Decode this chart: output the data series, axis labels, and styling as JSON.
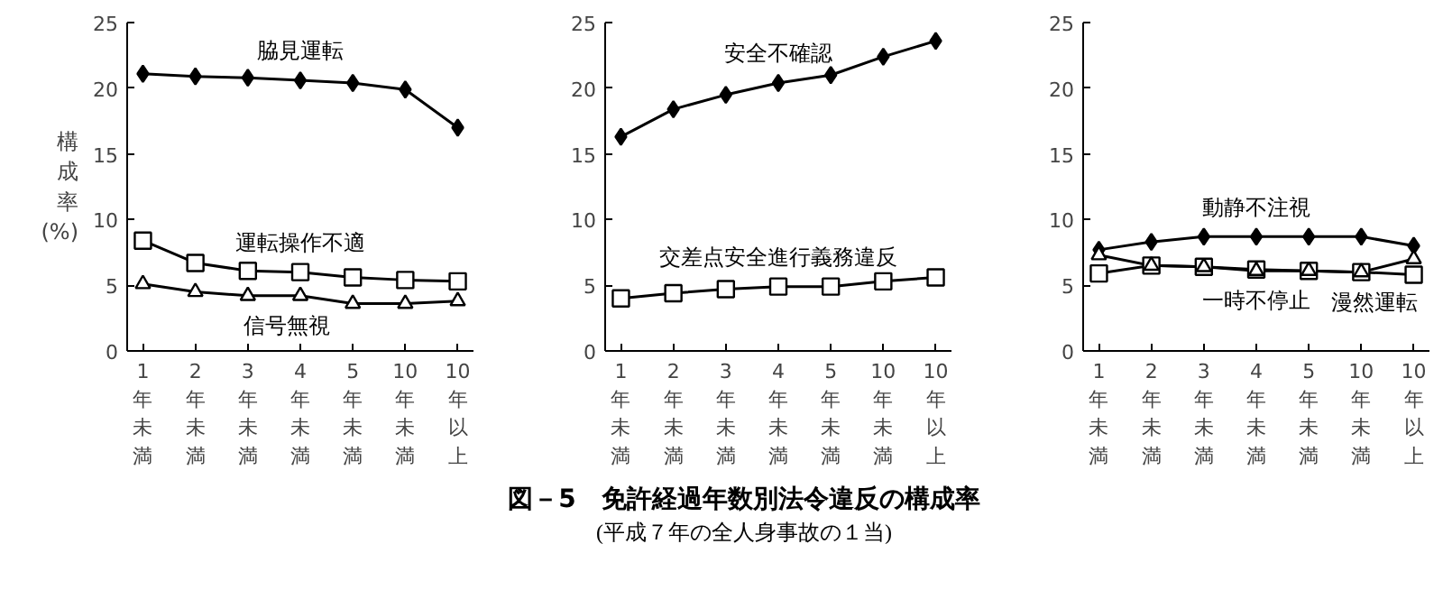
{
  "chart_data": [
    {
      "type": "line",
      "ylabel": "構成率(%)",
      "categories": [
        "1年未満",
        "2年未満",
        "3年未満",
        "4年未満",
        "5年未満",
        "10年未満",
        "10年以上"
      ],
      "ylim": [
        0,
        25
      ],
      "yticks": [
        0,
        5,
        10,
        15,
        20,
        25
      ],
      "grid": false,
      "line_style": "solid",
      "series": [
        {
          "name": "脇見運転",
          "color": "#000000",
          "marker": "diamond",
          "values": [
            21.1,
            20.9,
            20.8,
            20.6,
            20.4,
            19.9,
            17.0
          ]
        },
        {
          "name": "運転操作不適",
          "color": "#000000",
          "marker": "square",
          "values": [
            8.4,
            6.7,
            6.1,
            6.0,
            5.6,
            5.4,
            5.3
          ]
        },
        {
          "name": "信号無視",
          "color": "#000000",
          "marker": "triangle",
          "values": [
            5.1,
            4.5,
            4.2,
            4.2,
            3.6,
            3.6,
            3.8
          ]
        }
      ]
    },
    {
      "type": "line",
      "categories": [
        "1年未満",
        "2年未満",
        "3年未満",
        "4年未満",
        "5年未満",
        "10年未満",
        "10年以上"
      ],
      "ylim": [
        0,
        25
      ],
      "yticks": [
        0,
        5,
        10,
        15,
        20,
        25
      ],
      "grid": false,
      "line_style": "solid",
      "title": "図－5　免許経過年数別法令違反の構成率",
      "subtitle": "(平成７年の全人身事故の１当)",
      "series": [
        {
          "name": "安全不確認",
          "color": "#000000",
          "marker": "diamond",
          "values": [
            16.3,
            18.4,
            19.5,
            20.4,
            21.0,
            22.4,
            23.6
          ]
        },
        {
          "name": "交差点安全進行義務違反",
          "color": "#000000",
          "marker": "square",
          "values": [
            4.0,
            4.4,
            4.7,
            4.9,
            4.9,
            5.3,
            5.6
          ]
        }
      ]
    },
    {
      "type": "line",
      "categories": [
        "1年未満",
        "2年未満",
        "3年未満",
        "4年未満",
        "5年未満",
        "10年未満",
        "10年以上"
      ],
      "ylim": [
        0,
        25
      ],
      "yticks": [
        0,
        5,
        10,
        15,
        20,
        25
      ],
      "grid": false,
      "line_style": "solid",
      "series": [
        {
          "name": "動静不注視",
          "color": "#000000",
          "marker": "diamond",
          "values": [
            7.7,
            8.3,
            8.7,
            8.7,
            8.7,
            8.7,
            8.0
          ]
        },
        {
          "name": "一時不停止",
          "color": "#000000",
          "marker": "triangle",
          "values": [
            7.3,
            6.5,
            6.4,
            6.1,
            6.1,
            6.0,
            7.0
          ]
        },
        {
          "name": "漫然運転",
          "color": "#000000",
          "marker": "square",
          "values": [
            5.9,
            6.5,
            6.4,
            6.2,
            6.1,
            6.0,
            5.8
          ]
        }
      ]
    }
  ]
}
